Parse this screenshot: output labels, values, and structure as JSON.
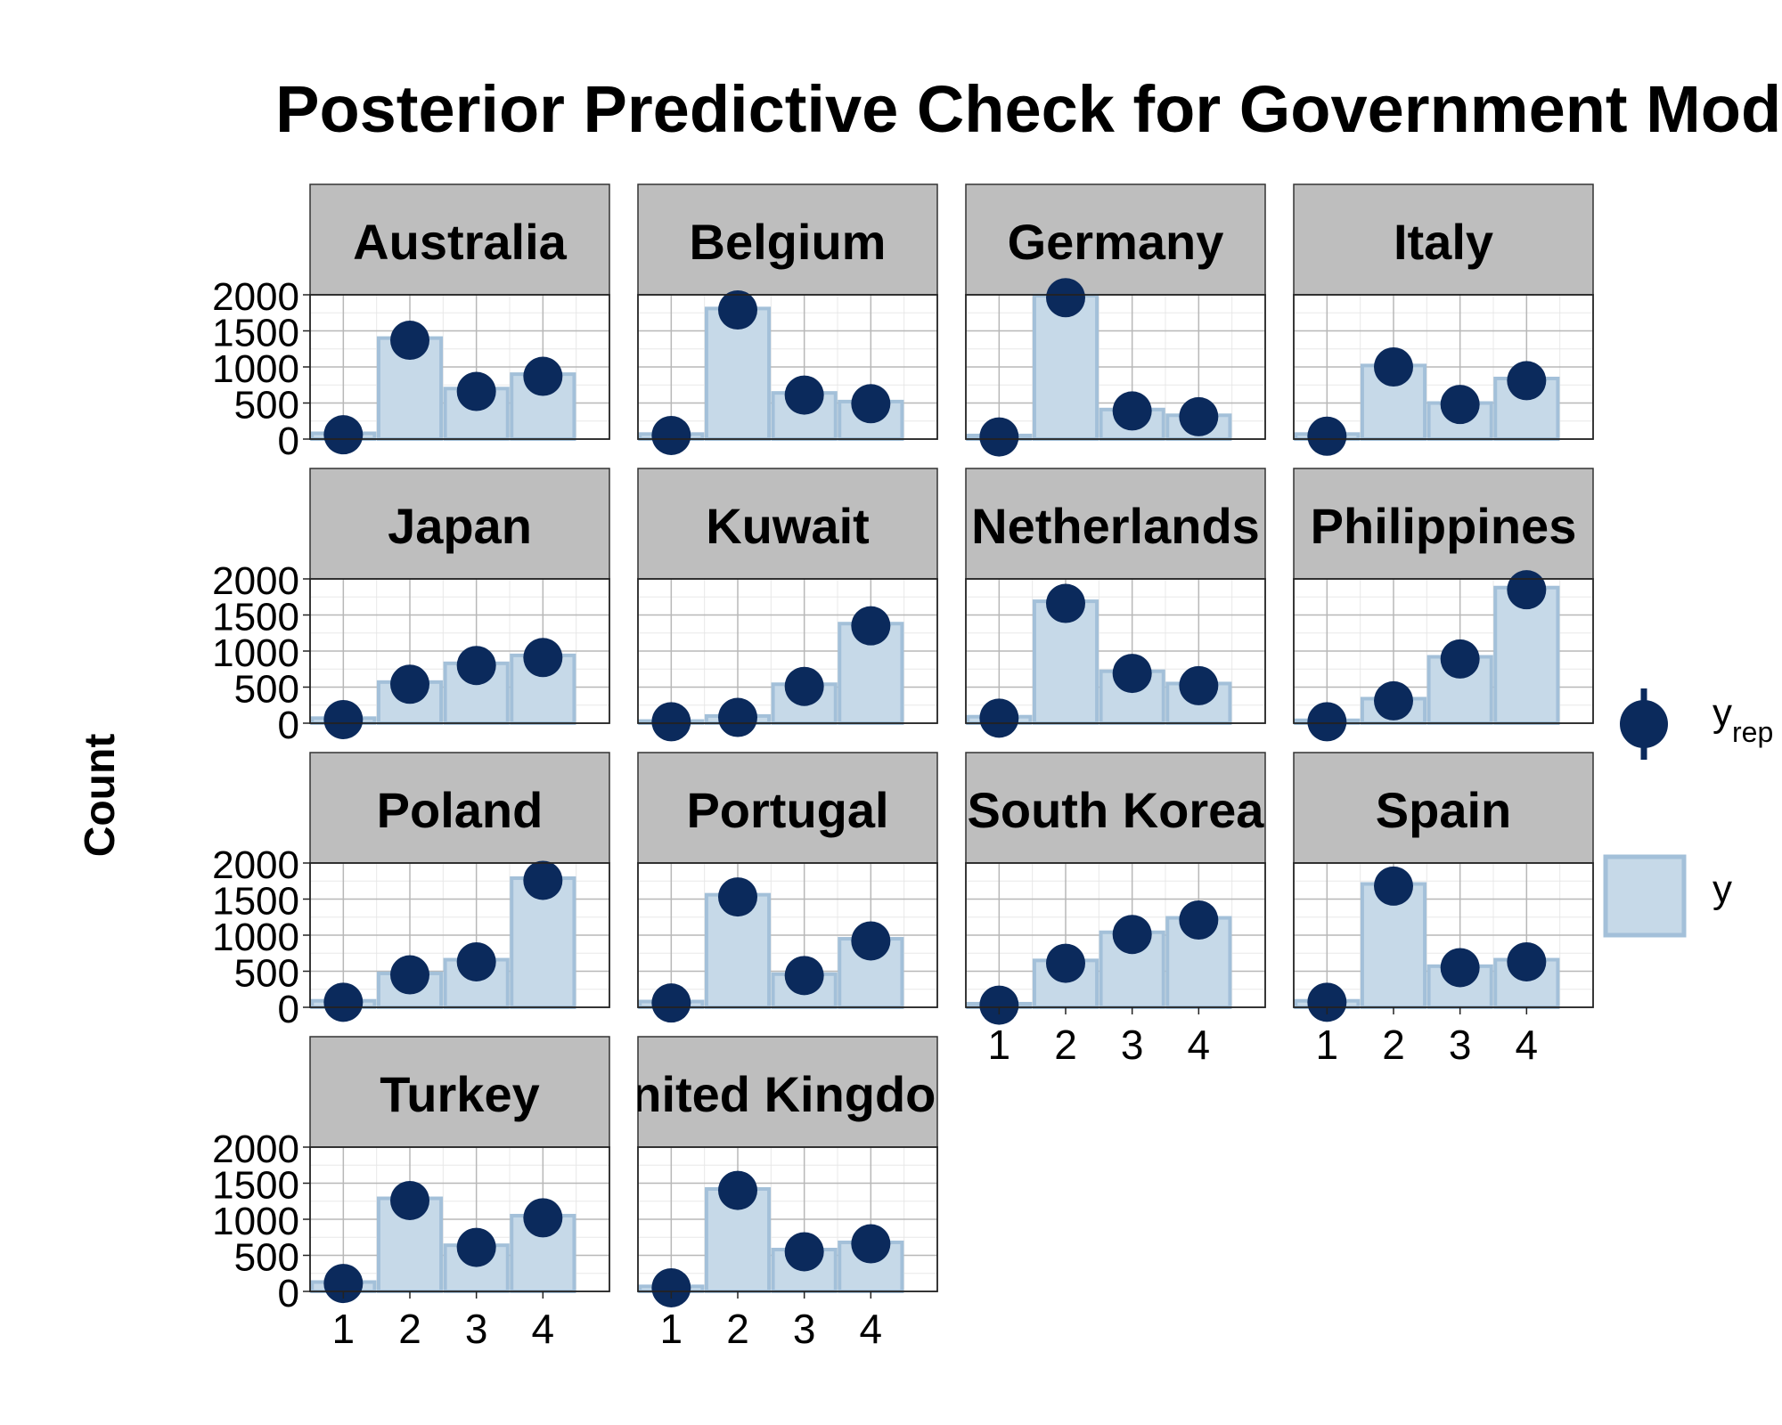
{
  "chart_data": {
    "type": "bar",
    "title": "Posterior Predictive Check for Government Model",
    "ylabel": "Count",
    "xlabel": "",
    "ylim": [
      0,
      2000
    ],
    "y_ticks": [
      "0",
      "500",
      "1000",
      "1500",
      "2000"
    ],
    "categories": [
      "1",
      "2",
      "3",
      "4"
    ],
    "legend": {
      "position": "right",
      "entries": [
        {
          "key": "yrep",
          "label": "y",
          "subscript": "rep"
        },
        {
          "key": "y",
          "label": "y"
        }
      ]
    },
    "colors": {
      "bar_fill": "#c6d9e8",
      "bar_outline": "#a3c0d9",
      "point": "#0b2a5c",
      "strip_bg": "#bebebe",
      "grid_major": "#b8b8b8",
      "grid_minor": "#e8e8e8"
    },
    "panels": [
      {
        "name": "Australia",
        "y": [
          80,
          1400,
          700,
          900
        ],
        "yrep": [
          60,
          1370,
          660,
          870
        ]
      },
      {
        "name": "Belgium",
        "y": [
          70,
          1810,
          640,
          520
        ],
        "yrep": [
          50,
          1790,
          610,
          490
        ]
      },
      {
        "name": "Germany",
        "y": [
          50,
          1990,
          410,
          330
        ],
        "yrep": [
          30,
          1960,
          390,
          310
        ]
      },
      {
        "name": "Italy",
        "y": [
          70,
          1020,
          500,
          840
        ],
        "yrep": [
          40,
          1000,
          480,
          810
        ]
      },
      {
        "name": "Japan",
        "y": [
          70,
          570,
          830,
          940
        ],
        "yrep": [
          50,
          540,
          800,
          910
        ]
      },
      {
        "name": "Kuwait",
        "y": [
          30,
          100,
          540,
          1380
        ],
        "yrep": [
          20,
          80,
          510,
          1350
        ]
      },
      {
        "name": "Netherlands",
        "y": [
          90,
          1690,
          720,
          550
        ],
        "yrep": [
          70,
          1660,
          690,
          520
        ]
      },
      {
        "name": "Philippines",
        "y": [
          40,
          340,
          920,
          1880
        ],
        "yrep": [
          20,
          310,
          890,
          1850
        ]
      },
      {
        "name": "Poland",
        "y": [
          90,
          470,
          660,
          1790
        ],
        "yrep": [
          70,
          450,
          630,
          1760
        ]
      },
      {
        "name": "Portugal",
        "y": [
          80,
          1560,
          460,
          950
        ],
        "yrep": [
          60,
          1530,
          440,
          920
        ]
      },
      {
        "name": "South Korea",
        "y": [
          50,
          650,
          1040,
          1240
        ],
        "yrep": [
          30,
          610,
          1010,
          1210
        ]
      },
      {
        "name": "Spain",
        "y": [
          90,
          1710,
          570,
          660
        ],
        "yrep": [
          70,
          1680,
          550,
          630
        ]
      },
      {
        "name": "Turkey",
        "y": [
          130,
          1290,
          640,
          1050
        ],
        "yrep": [
          110,
          1260,
          610,
          1020
        ]
      },
      {
        "name": "United Kingdom",
        "y": [
          70,
          1420,
          580,
          680
        ],
        "yrep": [
          50,
          1400,
          550,
          660
        ]
      }
    ]
  }
}
